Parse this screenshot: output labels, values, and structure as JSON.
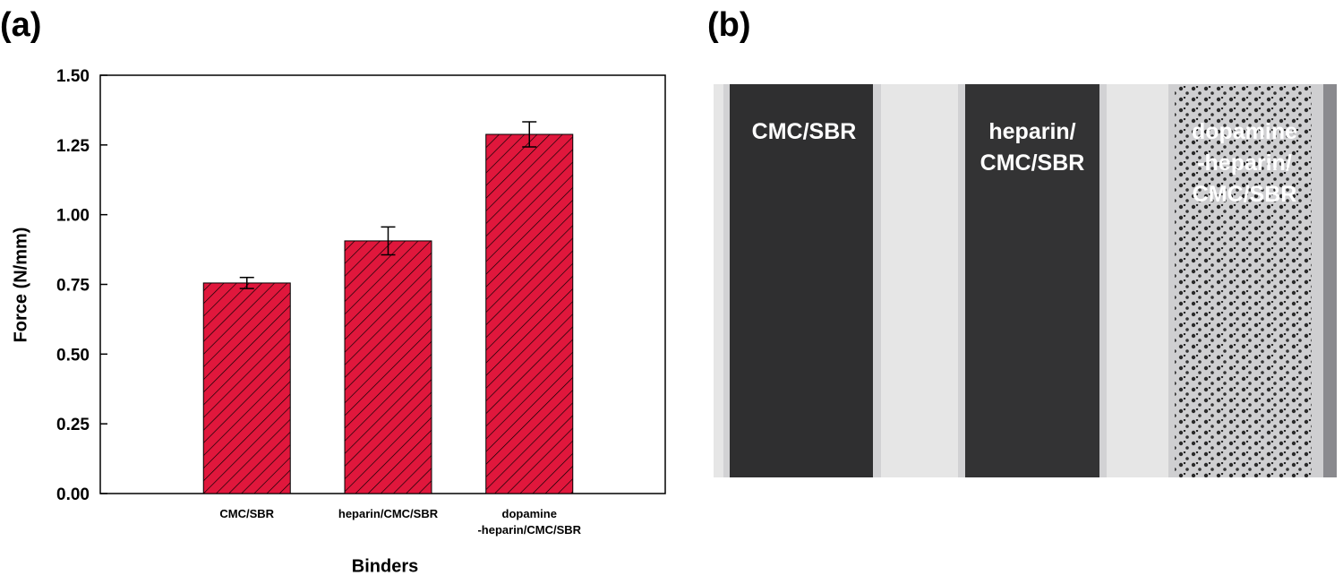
{
  "chart_data": {
    "type": "bar",
    "panel_label": "(a)",
    "categories": [
      "CMC/SBR",
      "heparin/CMC/SBR",
      "dopamine\n-heparin/CMC/SBR"
    ],
    "values": [
      0.755,
      0.906,
      1.288
    ],
    "errors": [
      0.02,
      0.05,
      0.045
    ],
    "color": "#e0173c",
    "x_label": "Binders",
    "y_label": "Force (N/mm)",
    "ylim": [
      0,
      1.5
    ],
    "yticks": [
      {
        "value": 0,
        "label": "0.00"
      },
      {
        "value": 0.25,
        "label": "0.25"
      },
      {
        "value": 0.5,
        "label": "0.50"
      },
      {
        "value": 0.75,
        "label": "0.75"
      },
      {
        "value": 1,
        "label": "1.00"
      },
      {
        "value": 1.25,
        "label": "1.25"
      },
      {
        "value": 1.5,
        "label": "1.50"
      }
    ]
  },
  "photo": {
    "panel_label": "(b)",
    "labels": [
      "CMC/SBR",
      "heparin/\nCMC/SBR",
      "dopamine\n-heparin/\nCMC/SBR"
    ]
  }
}
